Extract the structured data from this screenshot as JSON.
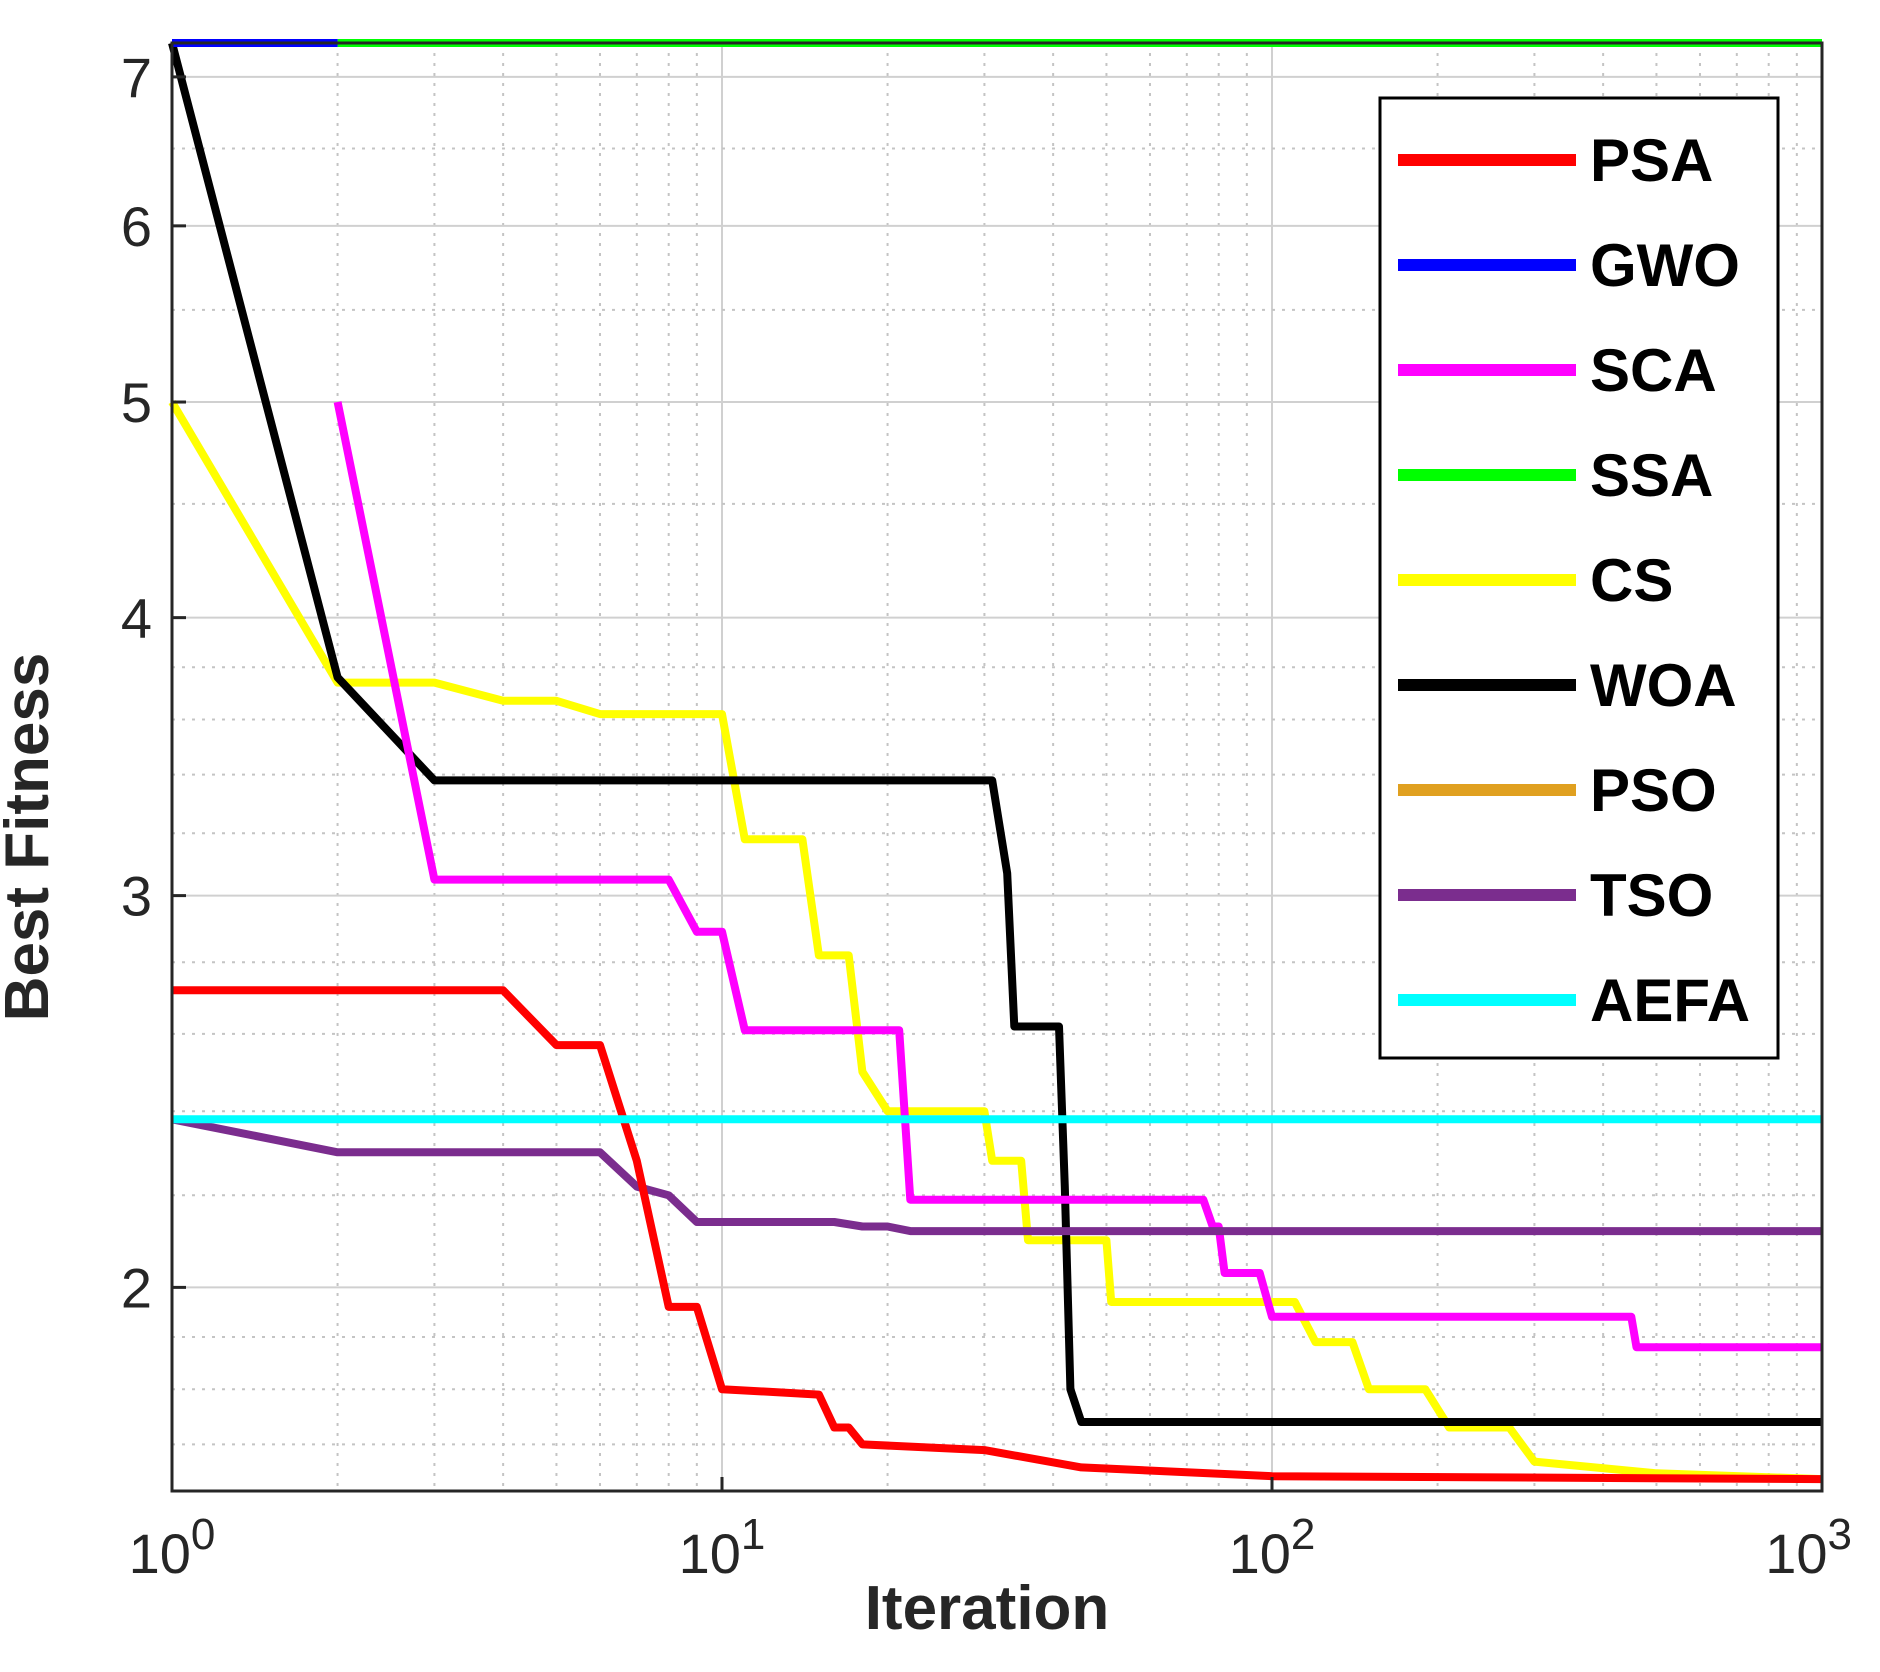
{
  "chart_data": {
    "type": "line",
    "title": "",
    "xlabel": "Iteration",
    "ylabel": "Best Fitness",
    "xscale": "log",
    "yscale": "log",
    "xlim": [
      1,
      1000
    ],
    "ylim": [
      1.62,
      7.25
    ],
    "x_ticks": [
      {
        "value": 1,
        "base": "10",
        "exp": "0"
      },
      {
        "value": 10,
        "base": "10",
        "exp": "1"
      },
      {
        "value": 100,
        "base": "10",
        "exp": "2"
      },
      {
        "value": 1000,
        "base": "10",
        "exp": "3"
      }
    ],
    "y_ticks": [
      {
        "value": 2,
        "label": "2"
      },
      {
        "value": 3,
        "label": "3"
      },
      {
        "value": 4,
        "label": "4"
      },
      {
        "value": 5,
        "label": "5"
      },
      {
        "value": 6,
        "label": "6"
      },
      {
        "value": 7,
        "label": "7"
      }
    ],
    "y_minor": [
      1.7,
      1.8,
      1.9,
      2.2,
      2.4,
      2.6,
      2.8,
      3.2,
      3.4,
      3.6,
      3.8,
      4.5,
      5.5,
      6.5
    ],
    "grid": true,
    "legend_position": "top-right",
    "series": [
      {
        "name": "PSA",
        "color": "#ff0000",
        "points": [
          [
            1,
            2.72
          ],
          [
            2,
            2.72
          ],
          [
            3,
            2.72
          ],
          [
            4,
            2.72
          ],
          [
            5,
            2.57
          ],
          [
            6,
            2.57
          ],
          [
            7,
            2.28
          ],
          [
            8,
            1.96
          ],
          [
            9,
            1.96
          ],
          [
            10,
            1.8
          ],
          [
            15,
            1.79
          ],
          [
            16,
            1.73
          ],
          [
            17,
            1.73
          ],
          [
            18,
            1.7
          ],
          [
            30,
            1.69
          ],
          [
            45,
            1.66
          ],
          [
            100,
            1.645
          ],
          [
            1000,
            1.64
          ]
        ]
      },
      {
        "name": "GWO",
        "color": "#0000ff",
        "points": [
          [
            1,
            7.25
          ],
          [
            2,
            7.25
          ]
        ]
      },
      {
        "name": "SCA",
        "color": "#ff00ff",
        "points": [
          [
            2,
            5.0
          ],
          [
            3,
            3.05
          ],
          [
            8,
            3.05
          ],
          [
            9,
            2.89
          ],
          [
            10,
            2.89
          ],
          [
            11,
            2.61
          ],
          [
            21,
            2.61
          ],
          [
            22,
            2.19
          ],
          [
            75,
            2.19
          ],
          [
            78,
            2.13
          ],
          [
            80,
            2.13
          ],
          [
            82,
            2.03
          ],
          [
            95,
            2.03
          ],
          [
            100,
            1.94
          ],
          [
            450,
            1.94
          ],
          [
            460,
            1.88
          ],
          [
            1000,
            1.88
          ]
        ]
      },
      {
        "name": "SSA",
        "color": "#00ff00",
        "points": [
          [
            2,
            7.25
          ],
          [
            1000,
            7.25
          ]
        ]
      },
      {
        "name": "CS",
        "color": "#ffff00",
        "points": [
          [
            1,
            5.0
          ],
          [
            2,
            3.74
          ],
          [
            3,
            3.74
          ],
          [
            4,
            3.67
          ],
          [
            5,
            3.67
          ],
          [
            6,
            3.62
          ],
          [
            10,
            3.62
          ],
          [
            11,
            3.18
          ],
          [
            14,
            3.18
          ],
          [
            15,
            2.82
          ],
          [
            17,
            2.82
          ],
          [
            18,
            2.5
          ],
          [
            20,
            2.4
          ],
          [
            30,
            2.4
          ],
          [
            31,
            2.28
          ],
          [
            35,
            2.28
          ],
          [
            36,
            2.1
          ],
          [
            50,
            2.1
          ],
          [
            51,
            1.97
          ],
          [
            110,
            1.97
          ],
          [
            120,
            1.89
          ],
          [
            140,
            1.89
          ],
          [
            150,
            1.8
          ],
          [
            190,
            1.8
          ],
          [
            210,
            1.73
          ],
          [
            270,
            1.73
          ],
          [
            300,
            1.67
          ],
          [
            500,
            1.65
          ],
          [
            1000,
            1.64
          ]
        ]
      },
      {
        "name": "WOA",
        "color": "#000000",
        "points": [
          [
            1,
            7.25
          ],
          [
            2,
            3.76
          ],
          [
            3,
            3.38
          ],
          [
            10,
            3.38
          ],
          [
            31,
            3.38
          ],
          [
            33,
            3.07
          ],
          [
            34,
            2.62
          ],
          [
            41,
            2.62
          ],
          [
            42,
            2.22
          ],
          [
            43,
            1.8
          ],
          [
            45,
            1.74
          ],
          [
            50,
            1.74
          ],
          [
            1000,
            1.74
          ]
        ]
      },
      {
        "name": "PSO",
        "color": "#e0a020",
        "points": []
      },
      {
        "name": "TSO",
        "color": "#7b2d8e",
        "points": [
          [
            1,
            2.38
          ],
          [
            2,
            2.3
          ],
          [
            6,
            2.3
          ],
          [
            7,
            2.22
          ],
          [
            8,
            2.2
          ],
          [
            9,
            2.14
          ],
          [
            16,
            2.14
          ],
          [
            18,
            2.13
          ],
          [
            20,
            2.13
          ],
          [
            22,
            2.12
          ],
          [
            1000,
            2.12
          ]
        ]
      },
      {
        "name": "AEFA",
        "color": "#00ffff",
        "points": [
          [
            1,
            2.38
          ],
          [
            1000,
            2.38
          ]
        ]
      }
    ]
  }
}
